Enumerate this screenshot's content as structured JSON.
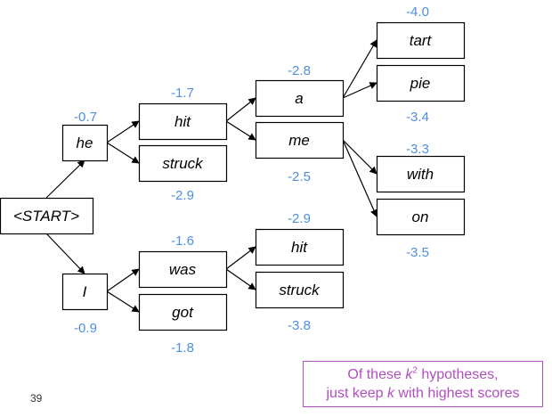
{
  "colors": {
    "score": "#4f8fe0",
    "highlight": "#2fae4a",
    "callout": "#b04ec0",
    "node_border": "#000000"
  },
  "nodes": {
    "start": {
      "label": "<START>",
      "color": "#000000"
    },
    "he": {
      "label": "he",
      "color": "#000000"
    },
    "i": {
      "label": "I",
      "color": "#000000"
    },
    "hit1": {
      "label": "hit",
      "color": "#000000"
    },
    "struck1": {
      "label": "struck",
      "color": "#000000"
    },
    "was": {
      "label": "was",
      "color": "#000000"
    },
    "got": {
      "label": "got",
      "color": "#000000"
    },
    "a": {
      "label": "a",
      "color": "#000000"
    },
    "me": {
      "label": "me",
      "color": "#000000"
    },
    "hit2": {
      "label": "hit",
      "color": "#000000"
    },
    "struck2": {
      "label": "struck",
      "color": "#000000"
    },
    "tart": {
      "label": "tart",
      "color": "#000000"
    },
    "pie": {
      "label": "pie",
      "color": "#2fae4a"
    },
    "with": {
      "label": "with",
      "color": "#2fae4a"
    },
    "on": {
      "label": "on",
      "color": "#000000"
    }
  },
  "scores": {
    "he": "-0.7",
    "i": "-0.9",
    "hit1": "-1.7",
    "struck1": "-2.9",
    "was": "-1.6",
    "got": "-1.8",
    "a": "-2.8",
    "me": "-2.5",
    "hit2": "-2.9",
    "struck2": "-3.8",
    "tart": "-4.0",
    "pie": "-3.4",
    "with": "-3.3",
    "on": "-3.5"
  },
  "callout": {
    "line1_prefix": "Of these ",
    "k_symbol": "k",
    "exponent": "2",
    "line1_suffix": " hypotheses,",
    "line2_prefix": "just keep ",
    "line2_suffix": " with highest scores"
  },
  "page_number": "39"
}
